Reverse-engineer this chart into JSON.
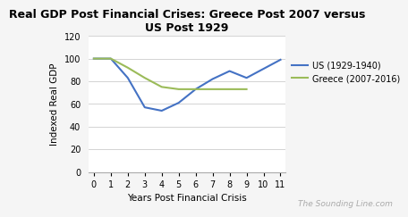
{
  "title": "Real GDP Post Financial Crises: Greece Post 2007 versus\nUS Post 1929",
  "xlabel": "Years Post Financial Crisis",
  "ylabel": "Indexed Real GDP",
  "us_x": [
    0,
    1,
    2,
    3,
    4,
    5,
    6,
    7,
    8,
    9,
    10,
    11
  ],
  "us_y": [
    100,
    100,
    83,
    57,
    54,
    61,
    73,
    82,
    89,
    83,
    91,
    99
  ],
  "greece_x": [
    0,
    1,
    2,
    3,
    4,
    5,
    6,
    7,
    8,
    9
  ],
  "greece_y": [
    100,
    100,
    92,
    83,
    75,
    73,
    73,
    73,
    73,
    73
  ],
  "us_color": "#4472C4",
  "greece_color": "#9BBB59",
  "us_label": "US (1929-1940)",
  "greece_label": "Greece (2007-2016)",
  "ylim": [
    0,
    120
  ],
  "xlim": [
    -0.3,
    11.3
  ],
  "yticks": [
    0,
    20,
    40,
    60,
    80,
    100,
    120
  ],
  "xticks": [
    0,
    1,
    2,
    3,
    4,
    5,
    6,
    7,
    8,
    9,
    10,
    11
  ],
  "watermark": "The Sounding Line.com",
  "bg_color": "#f5f5f5",
  "plot_bg_color": "#ffffff",
  "grid_color": "#cccccc",
  "title_fontsize": 9,
  "axis_label_fontsize": 7.5,
  "tick_fontsize": 7,
  "legend_fontsize": 7,
  "watermark_fontsize": 6.5
}
